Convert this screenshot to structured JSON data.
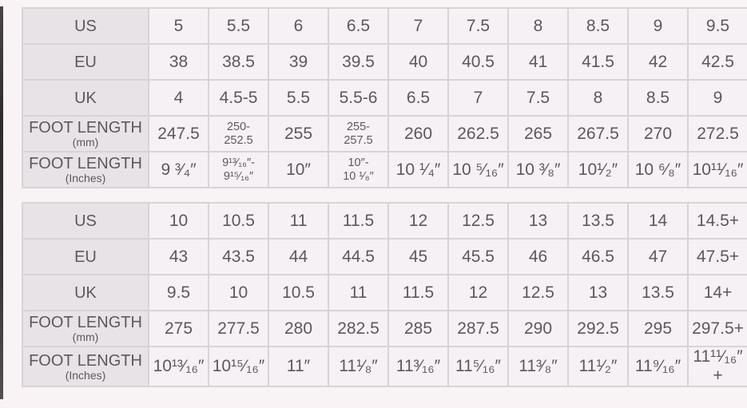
{
  "page": {
    "background": "#f9f3f5"
  },
  "colors": {
    "label_cell_bg": "#e7e3e7",
    "data_cell_bg": "#f5f1f4",
    "grid_border": "#d8d3d7",
    "text": "#5c585c",
    "left_edge_strip": "#2e2b2e"
  },
  "chart_data": [
    {
      "type": "table",
      "title": "",
      "rows": [
        {
          "label": "US",
          "sublabel": "",
          "cells": [
            "5",
            "5.5",
            "6",
            "6.5",
            "7",
            "7.5",
            "8",
            "8.5",
            "9",
            "9.5"
          ]
        },
        {
          "label": "EU",
          "sublabel": "",
          "cells": [
            "38",
            "38.5",
            "39",
            "39.5",
            "40",
            "40.5",
            "41",
            "41.5",
            "42",
            "42.5"
          ]
        },
        {
          "label": "UK",
          "sublabel": "",
          "cells": [
            "4",
            "4.5-5",
            "5.5",
            "5.5-6",
            "6.5",
            "7",
            "7.5",
            "8",
            "8.5",
            "9"
          ]
        },
        {
          "label": "FOOT LENGTH",
          "sublabel": "(mm)",
          "cells": [
            "247.5",
            "250-\n252.5",
            "255",
            "255-\n257.5",
            "260",
            "262.5",
            "265",
            "267.5",
            "270",
            "272.5"
          ]
        },
        {
          "label": "FOOT LENGTH",
          "sublabel": "(Inches)",
          "cells": [
            "9 ³⁄₄″",
            "9¹³⁄₁₆″-\n9¹⁵⁄₁₆″",
            "10″",
            "10″-\n10 ¹⁄₈″",
            "10 ¹⁄₄″",
            "10 ⁵⁄₁₆″",
            "10 ³⁄₈″",
            "10¹⁄₂″",
            "10 ⁶⁄₈″",
            "10¹¹⁄₁₆″"
          ]
        }
      ]
    },
    {
      "type": "table",
      "title": "",
      "rows": [
        {
          "label": "US",
          "sublabel": "",
          "cells": [
            "10",
            "10.5",
            "11",
            "11.5",
            "12",
            "12.5",
            "13",
            "13.5",
            "14",
            "14.5+"
          ]
        },
        {
          "label": "EU",
          "sublabel": "",
          "cells": [
            "43",
            "43.5",
            "44",
            "44.5",
            "45",
            "45.5",
            "46",
            "46.5",
            "47",
            "47.5+"
          ]
        },
        {
          "label": "UK",
          "sublabel": "",
          "cells": [
            "9.5",
            "10",
            "10.5",
            "11",
            "11.5",
            "12",
            "12.5",
            "13",
            "13.5",
            "14+"
          ]
        },
        {
          "label": "FOOT LENGTH",
          "sublabel": "(mm)",
          "cells": [
            "275",
            "277.5",
            "280",
            "282.5",
            "285",
            "287.5",
            "290",
            "292.5",
            "295",
            "297.5+"
          ]
        },
        {
          "label": "FOOT LENGTH",
          "sublabel": "(Inches)",
          "cells": [
            "10¹³⁄₁₆″",
            "10¹⁵⁄₁₆″",
            "11″",
            "11¹⁄₈″",
            "11³⁄₁₆″",
            "11⁵⁄₁₆″",
            "11³⁄₈″",
            "11¹⁄₂″",
            "11⁹⁄₁₆″",
            "11¹¹⁄₁₆″+"
          ]
        }
      ]
    }
  ]
}
